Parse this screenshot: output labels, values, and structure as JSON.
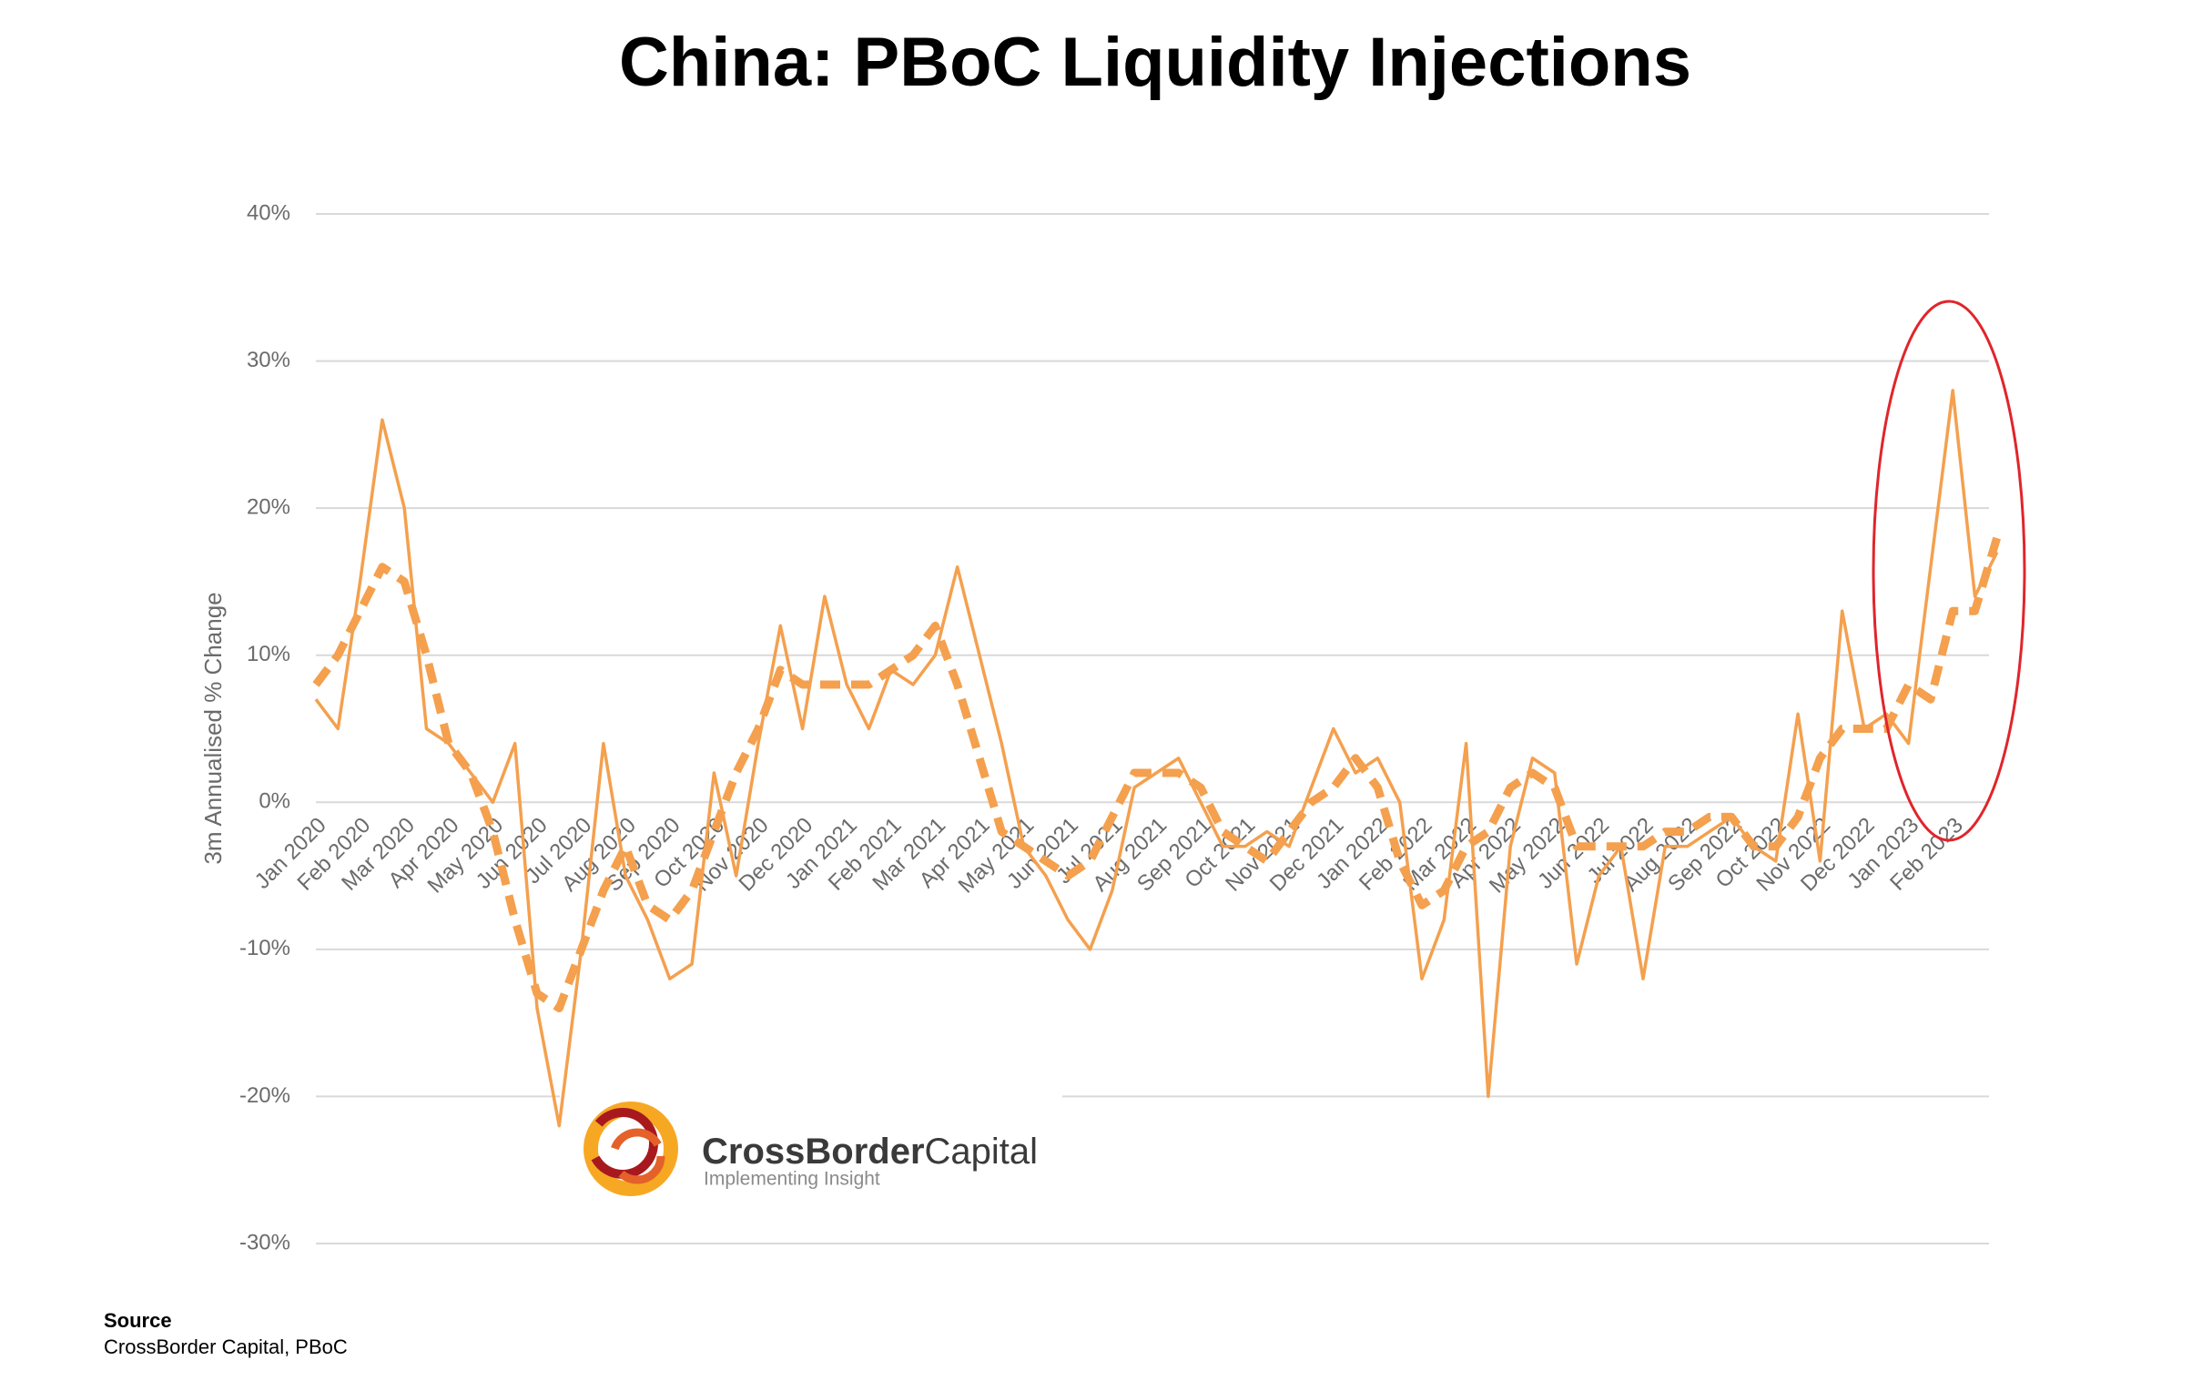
{
  "chart_data": {
    "type": "line",
    "title": "China: PBoC Liquidity Injections",
    "y_label": "3m Annualised % Change",
    "categories": [
      "Jan 2020",
      null,
      "Feb 2020",
      null,
      "Mar 2020",
      null,
      "Apr 2020",
      null,
      "May 2020",
      null,
      "Jun 2020",
      null,
      "Jul 2020",
      null,
      "Aug 2020",
      null,
      "Sep 2020",
      null,
      "Oct 2020",
      null,
      "Nov 2020",
      null,
      "Dec 2020",
      null,
      "Jan 2021",
      null,
      "Feb 2021",
      null,
      "Mar 2021",
      null,
      "Apr 2021",
      null,
      "May 2021",
      null,
      "Jun 2021",
      null,
      "Jul 2021",
      null,
      "Aug 2021",
      null,
      "Sep 2021",
      null,
      "Oct 2021",
      null,
      "Nov 2021",
      null,
      "Dec 2021",
      null,
      "Jan 2022",
      null,
      "Feb 2022",
      null,
      "Mar 2022",
      null,
      "Apr 2022",
      null,
      "May 2022",
      null,
      "Jun 2022",
      null,
      "Jul 2022",
      null,
      "Aug 2022",
      null,
      "Sep 2022",
      null,
      "Oct 2022",
      null,
      "Nov 2022",
      null,
      "Dec 2022",
      null,
      "Jan 2023",
      null,
      "Feb 2023",
      null,
      null
    ],
    "series": [
      {
        "color": "#f4a04e",
        "style": "solid",
        "values": [
          7,
          5,
          15,
          26,
          20,
          5,
          4,
          2,
          0,
          4,
          -14,
          -22,
          -10,
          4,
          -5,
          -8,
          -12,
          -11,
          2,
          -5,
          4,
          12,
          5,
          14,
          8,
          5,
          9,
          8,
          10,
          16,
          10,
          4,
          -3,
          -5,
          -8,
          -10,
          -6,
          1,
          2,
          3,
          0,
          -3,
          -3,
          -2,
          -3,
          1,
          5,
          2,
          3,
          0,
          -12,
          -8,
          4,
          -20,
          -3,
          3,
          2,
          -11,
          -5,
          -3,
          -12,
          -3,
          -3,
          -2,
          -1,
          -3,
          -4,
          6,
          -4,
          13,
          5,
          6,
          4,
          16,
          28,
          14,
          17
        ]
      },
      {
        "color": "#f4a04e",
        "style": "dashed",
        "values": [
          8,
          10,
          13,
          16,
          15,
          10,
          4,
          2,
          -2,
          -8,
          -13,
          -14,
          -10,
          -6,
          -3,
          -7,
          -8,
          -6,
          -2,
          2,
          5,
          9,
          8,
          8,
          8,
          8,
          9,
          10,
          12,
          8,
          3,
          -2,
          -3,
          -4,
          -5,
          -4,
          -1,
          2,
          2,
          2,
          1,
          -2,
          -3,
          -4,
          -2,
          0,
          1,
          3,
          1,
          -4,
          -7,
          -6,
          -3,
          -2,
          1,
          2,
          1,
          -3,
          -3,
          -3,
          -3,
          -2,
          -2,
          -1,
          -1,
          -3,
          -3,
          -1,
          3,
          5,
          5,
          5,
          8,
          7,
          13,
          13,
          18
        ]
      }
    ],
    "ylim": [
      -30,
      40
    ],
    "yticks": [
      {
        "value": -30,
        "label": "-30%"
      },
      {
        "value": -20,
        "label": "-20%"
      },
      {
        "value": -10,
        "label": "-10%"
      },
      {
        "value": 0,
        "label": "0%"
      },
      {
        "value": 10,
        "label": "10%"
      },
      {
        "value": 20,
        "label": "20%"
      },
      {
        "value": 30,
        "label": "30%"
      },
      {
        "value": 40,
        "label": "40%"
      }
    ],
    "grid": true,
    "logo": {
      "name_bold": "CrossBorder",
      "name_light": "Capital",
      "tagline": "Implementing Insight"
    },
    "source": {
      "heading": "Source",
      "text": "CrossBorder Capital, PBoC"
    }
  }
}
